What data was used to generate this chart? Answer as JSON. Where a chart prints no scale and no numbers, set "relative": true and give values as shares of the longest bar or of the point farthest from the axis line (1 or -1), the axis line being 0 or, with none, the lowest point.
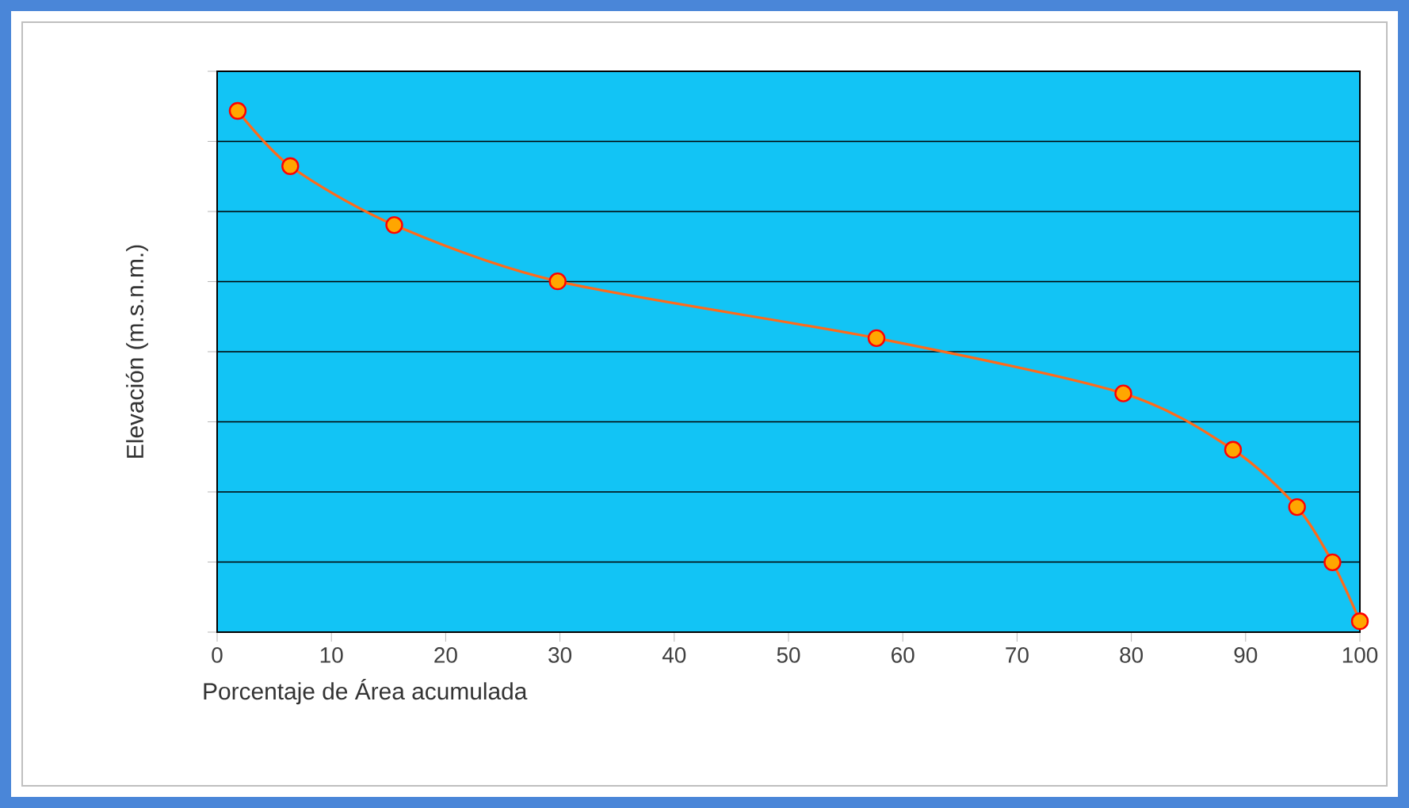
{
  "chart_data": {
    "type": "line",
    "xlabel": "Porcentaje de Área acumulada",
    "ylabel": "Elevación (m.s.n.m.)",
    "x": [
      1.8,
      6.4,
      15.5,
      29.8,
      57.7,
      79.3,
      88.9,
      94.5,
      97.6,
      100
    ],
    "values": [
      1,
      0.894,
      0.781,
      0.673,
      0.564,
      0.458,
      0.35,
      0.24,
      0.134,
      0.021
    ],
    "color": "#ff6a1a",
    "marker": "circle",
    "relative": true,
    "grid": "y",
    "xlim": [
      0,
      100
    ],
    "xticks": [
      0,
      10,
      20,
      30,
      40,
      50,
      60,
      70,
      80,
      90,
      100
    ]
  }
}
